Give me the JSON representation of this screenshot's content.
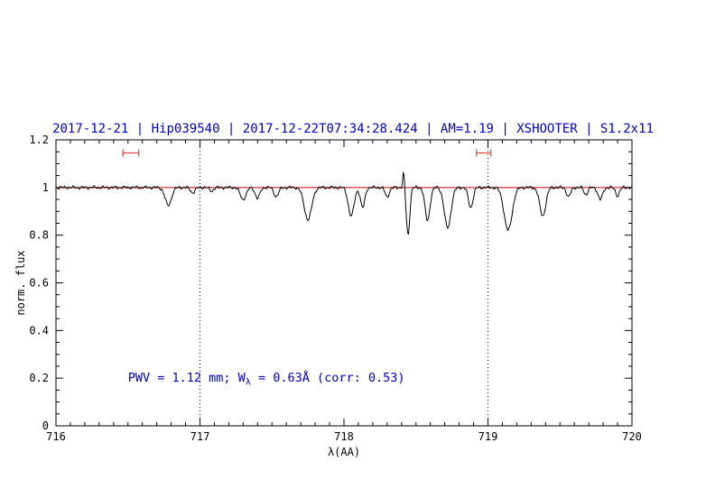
{
  "chart_data": {
    "type": "line",
    "title": "2017-12-21 | Hip039540 | 2017-12-22T07:34:28.424 | AM=1.19 | XSHOOTER | S1.2x11",
    "title_color": "#0000cc",
    "xlabel": "λ(AA)",
    "ylabel": "norm. flux",
    "xlim": [
      716,
      720
    ],
    "ylim": [
      0,
      1.2
    ],
    "x_ticks": [
      716,
      717,
      718,
      719,
      720
    ],
    "x_tick_labels": [
      "716",
      "717",
      "718",
      "719",
      "720"
    ],
    "x_minor_step": 0.1,
    "y_ticks": [
      0,
      0.2,
      0.4,
      0.6,
      0.8,
      1,
      1.2
    ],
    "y_tick_labels": [
      "0",
      "0.2",
      "0.4",
      "0.6",
      "0.8",
      "1",
      "1.2"
    ],
    "y_minor_step": 0.05,
    "grid": "off",
    "legend": "none",
    "dotted_vlines": [
      717,
      719
    ],
    "continuum_level": 1.0,
    "continuum_color": "#cc0000",
    "spectrum_color": "#000000",
    "noise_amplitude": 0.004,
    "absorption_lines": [
      {
        "center": 716.78,
        "depth": 0.075,
        "sigma": 0.022
      },
      {
        "center": 716.95,
        "depth": 0.022,
        "sigma": 0.015
      },
      {
        "center": 717.08,
        "depth": 0.015,
        "sigma": 0.013
      },
      {
        "center": 717.3,
        "depth": 0.05,
        "sigma": 0.02
      },
      {
        "center": 717.4,
        "depth": 0.045,
        "sigma": 0.016
      },
      {
        "center": 717.53,
        "depth": 0.038,
        "sigma": 0.016
      },
      {
        "center": 717.75,
        "depth": 0.135,
        "sigma": 0.026
      },
      {
        "center": 718.05,
        "depth": 0.12,
        "sigma": 0.02
      },
      {
        "center": 718.13,
        "depth": 0.085,
        "sigma": 0.015
      },
      {
        "center": 718.3,
        "depth": 0.04,
        "sigma": 0.014
      },
      {
        "center": 718.445,
        "depth": 0.2,
        "sigma": 0.012
      },
      {
        "center": 718.58,
        "depth": 0.14,
        "sigma": 0.017
      },
      {
        "center": 718.72,
        "depth": 0.17,
        "sigma": 0.023
      },
      {
        "center": 718.88,
        "depth": 0.085,
        "sigma": 0.016
      },
      {
        "center": 719.14,
        "depth": 0.18,
        "sigma": 0.028
      },
      {
        "center": 719.38,
        "depth": 0.12,
        "sigma": 0.021
      },
      {
        "center": 719.56,
        "depth": 0.04,
        "sigma": 0.014
      },
      {
        "center": 719.68,
        "depth": 0.03,
        "sigma": 0.013
      },
      {
        "center": 719.78,
        "depth": 0.05,
        "sigma": 0.016
      },
      {
        "center": 719.9,
        "depth": 0.035,
        "sigma": 0.013
      }
    ],
    "emission_spike": {
      "center": 718.415,
      "height": 0.07,
      "sigma": 0.006
    },
    "range_markers": [
      {
        "x_center": 716.52,
        "half_width": 0.055,
        "y": 1.145,
        "color": "#dd4444"
      },
      {
        "x_center": 718.97,
        "half_width": 0.05,
        "y": 1.145,
        "color": "#dd4444"
      }
    ],
    "annotation": {
      "prefix": "PWV = 1.12 mm; W",
      "sub": "λ",
      "suffix": " = 0.63Å (corr: 0.53)",
      "color": "#0000cc",
      "x": 716.5,
      "y": 0.2
    }
  }
}
